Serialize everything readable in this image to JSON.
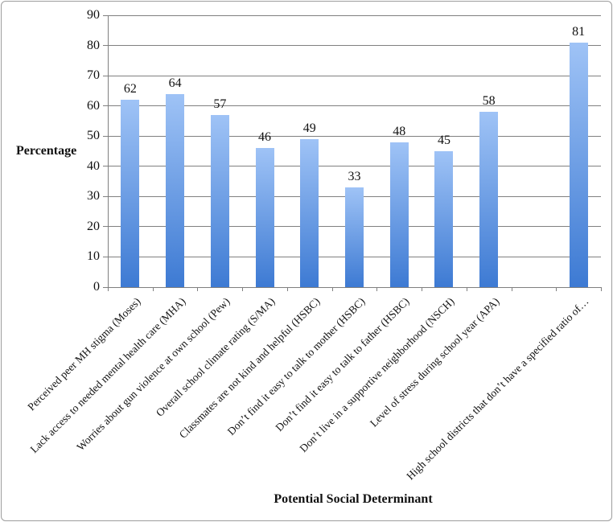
{
  "chart_data": {
    "type": "bar",
    "title": "",
    "xlabel": "Potential Social Determinant",
    "ylabel": "Percentage",
    "ylim": [
      0,
      90
    ],
    "ytick_step": 10,
    "grid": true,
    "legend": false,
    "bar_color_top": "#9fc3f6",
    "bar_color_bottom": "#3d7ad3",
    "axis_color": "#808080",
    "categories": [
      "Perceived peer MH stigma (Moses)",
      "Lack access to needed mental health care (MHA)",
      "Worries about gun violence at own school (Pew)",
      "Overall school climate rating (S/MA)",
      "Classmates are not kind and helpful (HSBC)",
      "Don’t find it easy to talk to mother (HSBC)",
      "Don’t find it easy to talk to father (HSBC)",
      "Don’t live in a supportive neighborhood (NSCH)",
      "Level of stress during school year (APA)",
      "",
      "High school districts that don’t have a specified ratio of…"
    ],
    "values": [
      62,
      64,
      57,
      46,
      49,
      33,
      48,
      45,
      58,
      null,
      81
    ]
  }
}
